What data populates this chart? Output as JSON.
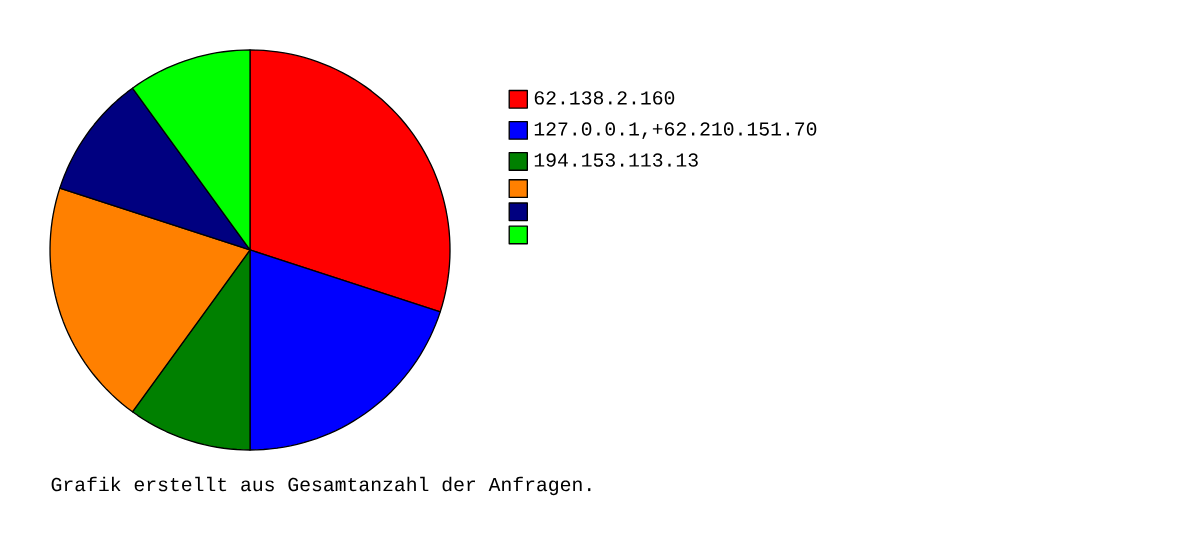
{
  "chart_data": {
    "type": "pie",
    "categories": [
      "62.138.2.160",
      "127.0.0.1,+62.210.151.70",
      "194.153.113.13",
      null,
      null,
      null
    ],
    "values": [
      30,
      20,
      10,
      20,
      10,
      10
    ],
    "colors": [
      "#ff0000",
      "#0000ff",
      "#008000",
      "#ff8000",
      "#000080",
      "#00ff00"
    ],
    "legend": "right",
    "annotations": [
      "Grafik erstellt aus Gesamtanzahl der Anfragen."
    ]
  }
}
